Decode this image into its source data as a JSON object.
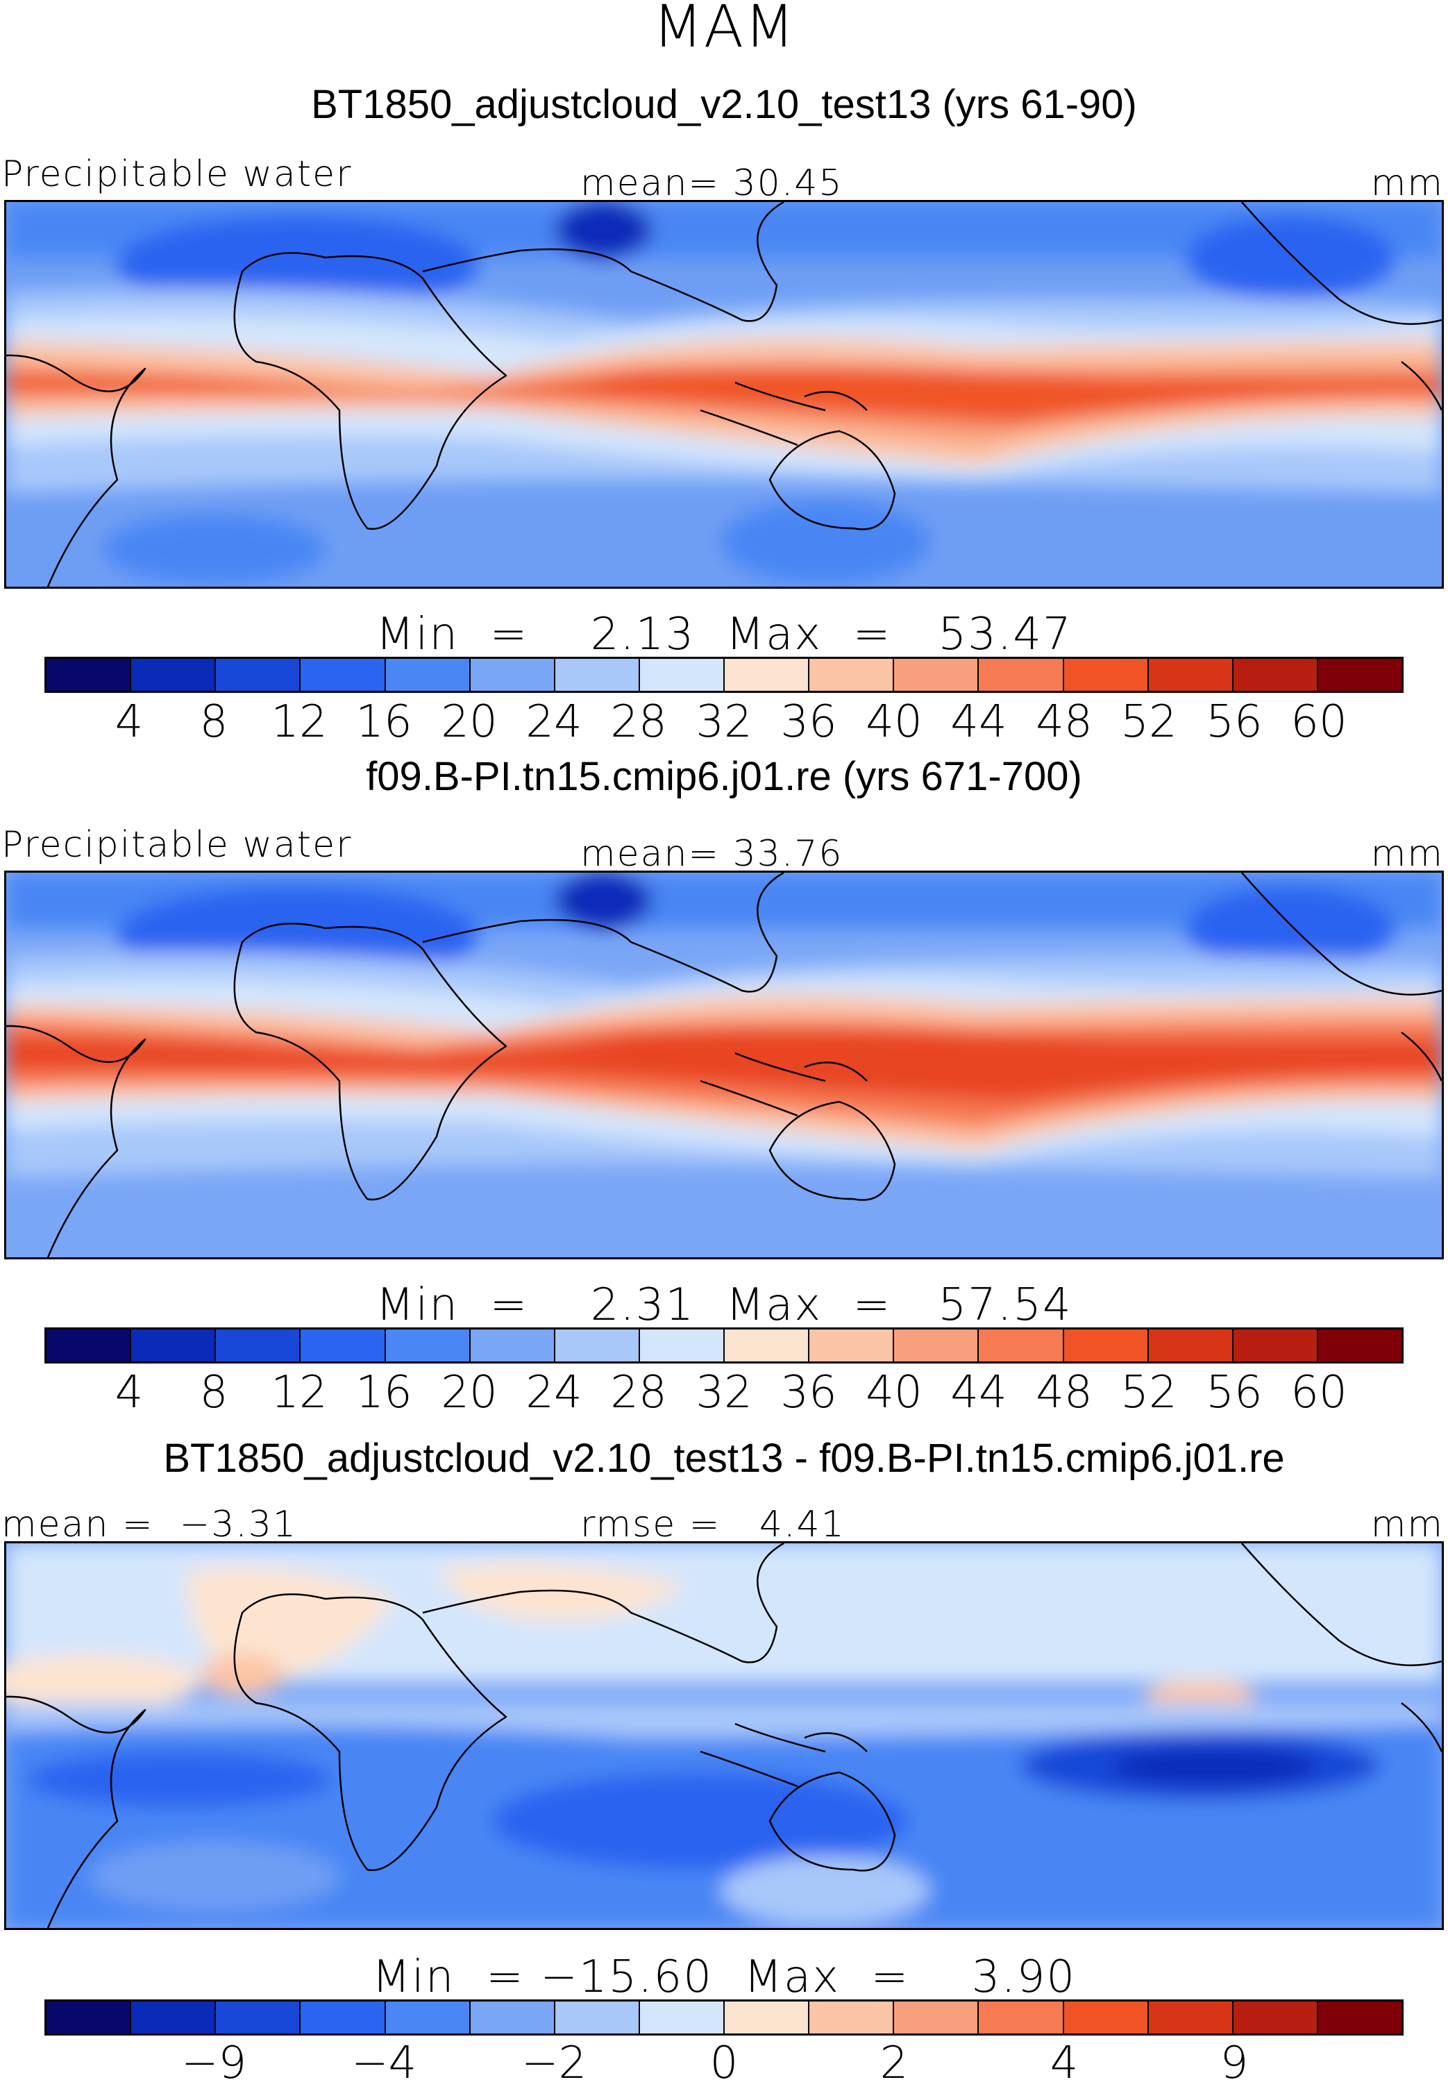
{
  "season": "MAM",
  "palette": [
    "#08086a",
    "#0a2ab8",
    "#1848d8",
    "#2a64f0",
    "#4a86f4",
    "#7aa6f6",
    "#a8c8fa",
    "#d4e6fc",
    "#fde4d0",
    "#fcc4a6",
    "#f8a07c",
    "#f67a52",
    "#f05426",
    "#d83416",
    "#b81e10",
    "#800008"
  ],
  "panels": [
    {
      "title": "BT1850_adjustcloud_v2.10_test13 (yrs 61-90)",
      "left_label": "Precipitable water",
      "center_label": "mean=  30.45",
      "unit": "mm",
      "min_max": "Min  =    2.13  Max  =   53.47",
      "ticks": [
        "4",
        "8",
        "12",
        "16",
        "20",
        "24",
        "28",
        "32",
        "36",
        "40",
        "44",
        "48",
        "52",
        "56",
        "60"
      ]
    },
    {
      "title": "f09.B-PI.tn15.cmip6.j01.re (yrs 671-700)",
      "left_label": "Precipitable water",
      "center_label": "mean=  33.76",
      "unit": "mm",
      "min_max": "Min  =    2.31  Max  =   57.54",
      "ticks": [
        "4",
        "8",
        "12",
        "16",
        "20",
        "24",
        "28",
        "32",
        "36",
        "40",
        "44",
        "48",
        "52",
        "56",
        "60"
      ]
    },
    {
      "title": "BT1850_adjustcloud_v2.10_test13 - f09.B-PI.tn15.cmip6.j01.re",
      "left_label": "mean =  −3.31",
      "center_label": "rmse =   4.41",
      "unit": "mm",
      "min_max": "Min  = −15.60  Max  =    3.90",
      "ticks": [
        "−9",
        "−4",
        "−2",
        "0",
        "2",
        "4",
        "9"
      ]
    }
  ]
}
